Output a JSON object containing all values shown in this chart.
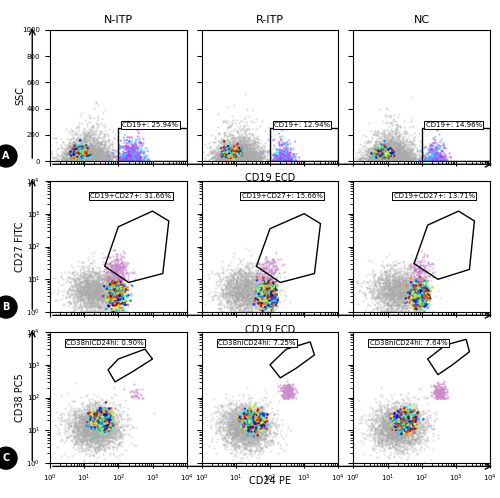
{
  "col_labels": [
    "N-ITP",
    "R-ITP",
    "NC"
  ],
  "row_labels": [
    "A",
    "B",
    "C"
  ],
  "row_ylabel": [
    "SSC",
    "CD27 FITC",
    "CD38 PC5"
  ],
  "row_xlabel": [
    "CD19 ECD",
    "CD19 ECD",
    "CD24 PE"
  ],
  "annotations": [
    [
      "CD19+: 25.94%",
      "CD19+: 12.94%",
      "CD19+: 14.96%"
    ],
    [
      "CD19+CD27+: 31.66%",
      "CD19+CD27+: 15.66%",
      "CD19+CD27+: 13.71%"
    ],
    [
      "CD38hiCD24hi: 0.90%",
      "CD38hiCD24hi: 7.25%",
      "CD38hiCD24hi: 7.64%"
    ]
  ],
  "bg_color": "#ffffff",
  "plot_bg": "#ffffff",
  "figure_size": [
    5.0,
    4.98
  ]
}
